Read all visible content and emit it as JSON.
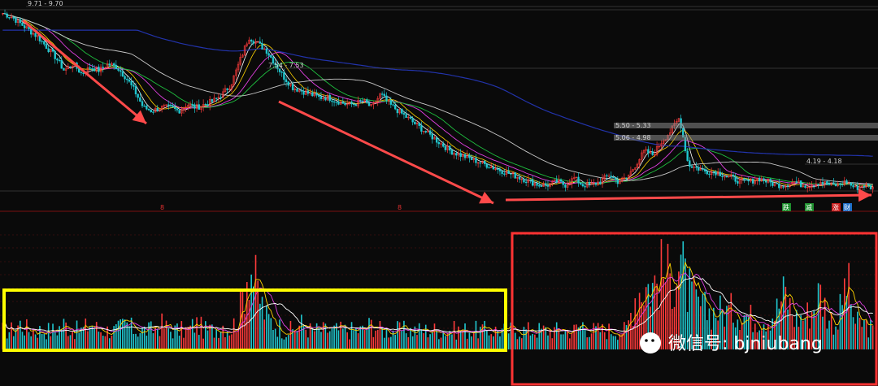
{
  "chart_data": [
    {
      "type": "candlestick",
      "panel": "price",
      "price_labels": [
        "9.71 - 9.70",
        "7.54 - 7.53",
        "5.50 - 5.33",
        "5.06 - 4.98",
        "4.19 - 4.18"
      ],
      "price_path": [
        9.7,
        9.6,
        9.4,
        9.2,
        9.0,
        8.7,
        8.4,
        8.0,
        8.2,
        7.9,
        8.1,
        8.0,
        8.2,
        8.1,
        7.8,
        7.4,
        6.9,
        6.8,
        6.9,
        6.9,
        6.8,
        7.0,
        6.9,
        7.0,
        7.1,
        7.3,
        7.6,
        8.3,
        9.0,
        8.8,
        8.6,
        8.2,
        7.8,
        7.5,
        7.4,
        7.3,
        7.2,
        7.2,
        7.1,
        7.0,
        7.0,
        7.1,
        6.9,
        7.3,
        7.0,
        6.8,
        6.6,
        6.4,
        6.2,
        6.0,
        5.8,
        5.6,
        5.5,
        5.4,
        5.3,
        5.2,
        5.1,
        5.0,
        4.9,
        4.8,
        4.7,
        4.6,
        4.6,
        4.7,
        4.6,
        4.8,
        4.6,
        4.6,
        4.7,
        4.9,
        4.7,
        4.8,
        5.2,
        5.6,
        5.5,
        5.9,
        6.2,
        6.6,
        5.2,
        5.1,
        5.0,
        5.0,
        4.9,
        4.8,
        4.7,
        4.7,
        4.8,
        4.7,
        4.6,
        4.6,
        4.7,
        4.6,
        4.6,
        4.7,
        4.6,
        4.6,
        4.7,
        4.5,
        4.6,
        4.5
      ],
      "vol_path": [
        3,
        3,
        4,
        3,
        3,
        3,
        3,
        4,
        3,
        3,
        4,
        3,
        3,
        3,
        4,
        3,
        3,
        3,
        4,
        3,
        3,
        3,
        4,
        3,
        3,
        4,
        3,
        6,
        14,
        9,
        5,
        4,
        3,
        3,
        4,
        3,
        3,
        3,
        3,
        3,
        3,
        3,
        4,
        3,
        3,
        3,
        3,
        3,
        3,
        3,
        3,
        3,
        3,
        3,
        3,
        3,
        3,
        3,
        3,
        3,
        3,
        3,
        3,
        3,
        3,
        3,
        4,
        3,
        3,
        3,
        3,
        3,
        9,
        10,
        10,
        12,
        11,
        14,
        9,
        7,
        6,
        6,
        6,
        6,
        6,
        5,
        5,
        5,
        6,
        9,
        5,
        5,
        6,
        9,
        5,
        4,
        11,
        4,
        4,
        3
      ],
      "markers": [
        "8",
        "8"
      ],
      "badges": [
        {
          "text": "跌",
          "color": "#1e8f2e"
        },
        {
          "text": "减",
          "color": "#1e8f2e"
        },
        {
          "text": "涨",
          "color": "#c81e1e"
        },
        {
          "text": "财",
          "color": "#1e6fc8"
        }
      ]
    }
  ],
  "watermark": {
    "text": "微信号: bjniubang"
  },
  "colors": {
    "up": "#ff3b3b",
    "down": "#20c8d0",
    "ma5": "#ffffff",
    "ma10": "#ffd400",
    "ma20": "#e040e0",
    "ma30": "#1fbf3f",
    "ma60": "#c8c8c8",
    "ma250": "#2233aa",
    "arrow": "#ff4a4a",
    "box_yellow": "#ffff00",
    "box_red": "#ff3333"
  }
}
